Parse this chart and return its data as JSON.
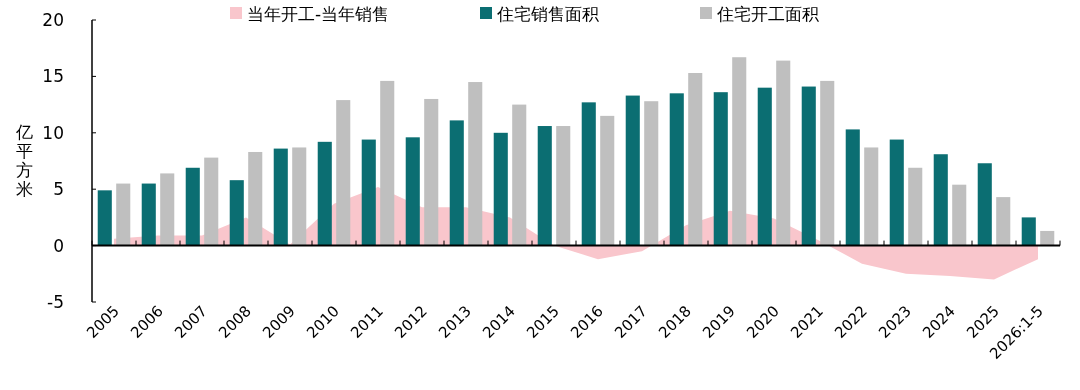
{
  "chart_data": {
    "type": "bar",
    "ylabel": "亿平方米",
    "categories": [
      "2005",
      "2006",
      "2007",
      "2008",
      "2009",
      "2010",
      "2011",
      "2012",
      "2013",
      "2014",
      "2015",
      "2016",
      "2017",
      "2018",
      "2019",
      "2020",
      "2021",
      "2022",
      "2023",
      "2024",
      "2025",
      "2026:1-5"
    ],
    "series": [
      {
        "name": "当年开工-当年销售",
        "type": "area",
        "color": "#f9c6cc",
        "values": [
          0.6,
          0.9,
          0.9,
          2.5,
          0.1,
          3.7,
          5.2,
          3.4,
          3.4,
          2.5,
          0,
          -1.2,
          -0.5,
          1.8,
          3.1,
          2.4,
          0.5,
          -1.6,
          -2.5,
          -2.7,
          -3.0,
          -1.2
        ]
      },
      {
        "name": "住宅销售面积",
        "color": "#0b6e72",
        "values": [
          4.9,
          5.5,
          6.9,
          5.8,
          8.6,
          9.2,
          9.4,
          9.6,
          11.1,
          10.0,
          10.6,
          12.7,
          13.3,
          13.5,
          13.6,
          14.0,
          14.1,
          10.3,
          9.4,
          8.1,
          7.3,
          2.5
        ]
      },
      {
        "name": "住宅开工面积",
        "color": "#bfbfbf",
        "values": [
          5.5,
          6.4,
          7.8,
          8.3,
          8.7,
          12.9,
          14.6,
          13.0,
          14.5,
          12.5,
          10.6,
          11.5,
          12.8,
          15.3,
          16.7,
          16.4,
          14.6,
          8.7,
          6.9,
          5.4,
          4.3,
          1.3
        ]
      }
    ],
    "ylim": [
      -5,
      20
    ],
    "yticks": [
      -5,
      0,
      5,
      10,
      15,
      20
    ],
    "legend": "top"
  }
}
